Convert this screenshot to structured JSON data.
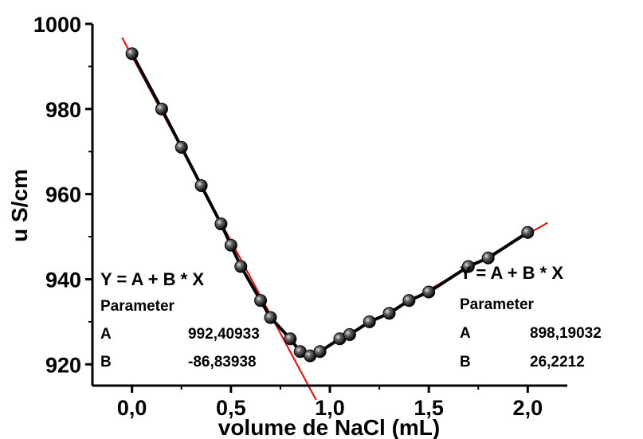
{
  "chart_data": {
    "type": "scatter",
    "xlabel": "volume de NaCl (mL)",
    "ylabel": "u S/cm",
    "xlim": [
      -0.2,
      2.2
    ],
    "ylim": [
      915,
      1000
    ],
    "x_ticks": [
      0.0,
      0.5,
      1.0,
      1.5,
      2.0
    ],
    "x_tick_labels": [
      "0,0",
      "0,5",
      "1,0",
      "1,5",
      "2,0"
    ],
    "y_ticks": [
      920,
      940,
      960,
      980,
      1000
    ],
    "y_tick_labels": [
      "920",
      "940",
      "960",
      "980",
      "1000"
    ],
    "grid": false,
    "series": [
      {
        "x": [
          0.0,
          0.15,
          0.25,
          0.35,
          0.45,
          0.5,
          0.55,
          0.65,
          0.7,
          0.8,
          0.85,
          0.9,
          0.95,
          1.05,
          1.1,
          1.2,
          1.3,
          1.4,
          1.5,
          1.7,
          1.8,
          2.0
        ],
        "y": [
          993,
          980,
          971,
          962,
          953,
          948,
          943,
          935,
          931,
          926,
          923,
          922,
          923,
          926,
          927,
          930,
          932,
          935,
          937,
          943,
          945,
          951
        ],
        "color": "#000000"
      }
    ],
    "fits": [
      {
        "x_range": [
          -0.05,
          0.93
        ],
        "A": 992.40933,
        "B": -86.83938,
        "color": "#ff0000"
      },
      {
        "x_range": [
          0.88,
          2.1
        ],
        "A": 898.19032,
        "B": 26.2212,
        "color": "#ff0000"
      }
    ],
    "annotations": {
      "left": {
        "equation": "Y = A + B * X",
        "parameter_label": "Parameter",
        "row_a_label": "A",
        "row_a_value": "992,40933",
        "row_b_label": "B",
        "row_b_value": "-86,83938"
      },
      "right": {
        "equation": "Y = A + B * X",
        "parameter_label": "Parameter",
        "row_a_label": "A",
        "row_a_value": "898,19032",
        "row_b_label": "B",
        "row_b_value": "26,2212"
      }
    }
  }
}
